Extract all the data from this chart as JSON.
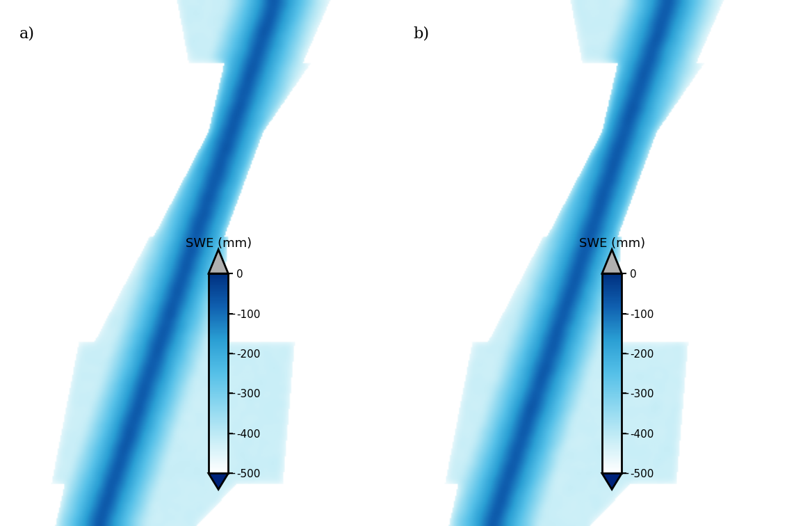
{
  "title_a": "a)",
  "title_b": "b)",
  "colorbar_label": "SWE (mm)",
  "colorbar_ticks": [
    0,
    -100,
    -200,
    -300,
    -400,
    -500
  ],
  "colorbar_colors": [
    "#e0f7ff",
    "#b0e8f5",
    "#7dd4f0",
    "#3db8e8",
    "#1a8dcc",
    "#0050a0",
    "#00237a"
  ],
  "background_color": "#ffffff",
  "map_bg": "#add8e6",
  "figure_width": 11.32,
  "figure_height": 7.56
}
